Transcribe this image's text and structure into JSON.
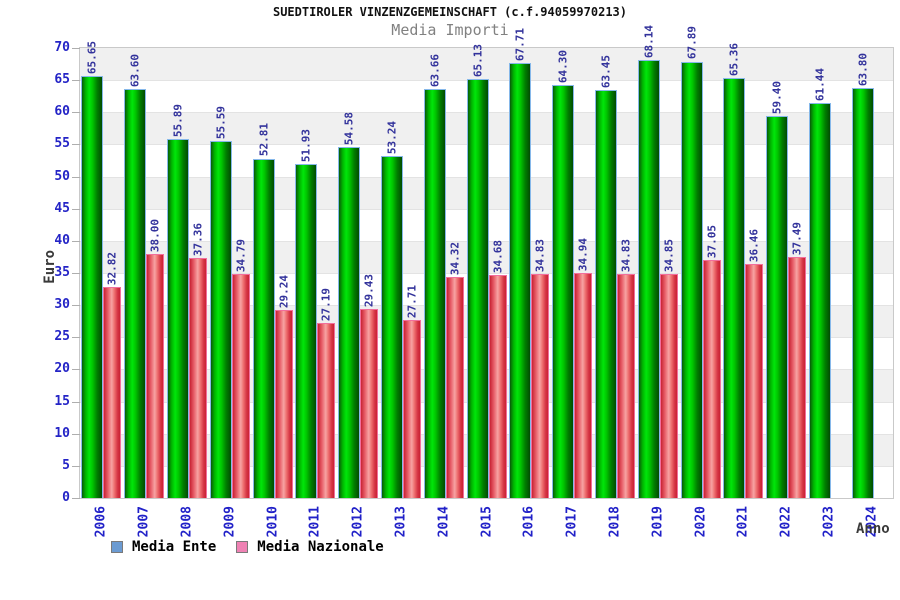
{
  "chart_data": {
    "type": "bar",
    "title": "SUEDTIROLER VINZENZGEMEINSCHAFT (c.f.94059970213)",
    "subtitle": "Media Importi",
    "xlabel": "Anno",
    "ylabel": "Euro",
    "ylim": [
      0,
      70
    ],
    "ytick_step": 5,
    "grid": "alternating-horizontal-bands",
    "legend_position": "bottom-left",
    "value_label_rotation": "vertical",
    "categories": [
      "2006",
      "2007",
      "2008",
      "2009",
      "2010",
      "2011",
      "2012",
      "2013",
      "2014",
      "2015",
      "2016",
      "2017",
      "2018",
      "2019",
      "2020",
      "2021",
      "2022",
      "2023",
      "2024"
    ],
    "series": [
      {
        "name": "Media Ente",
        "legend_color": "#6b9bd2",
        "bar_color": "#00cc00",
        "values": [
          65.65,
          63.6,
          55.89,
          55.59,
          52.81,
          51.93,
          54.58,
          53.24,
          63.66,
          65.13,
          67.71,
          64.3,
          63.45,
          68.14,
          67.89,
          65.36,
          59.4,
          61.44,
          63.8
        ]
      },
      {
        "name": "Media Nazionale",
        "legend_color": "#ef82b4",
        "bar_color": "#e85560",
        "values": [
          32.82,
          38.0,
          37.36,
          34.79,
          29.24,
          27.19,
          29.43,
          27.71,
          34.32,
          34.68,
          34.83,
          34.94,
          34.83,
          34.85,
          37.05,
          36.46,
          37.49,
          null,
          null
        ]
      }
    ],
    "colors": {
      "band_gray": "#f0f0f0",
      "band_white": "#ffffff",
      "axis_tick_label": "#2424c6",
      "value_label": "#32329b",
      "plot_border": "#c9c9c9",
      "title": "#111111",
      "subtitle": "#818181"
    }
  }
}
